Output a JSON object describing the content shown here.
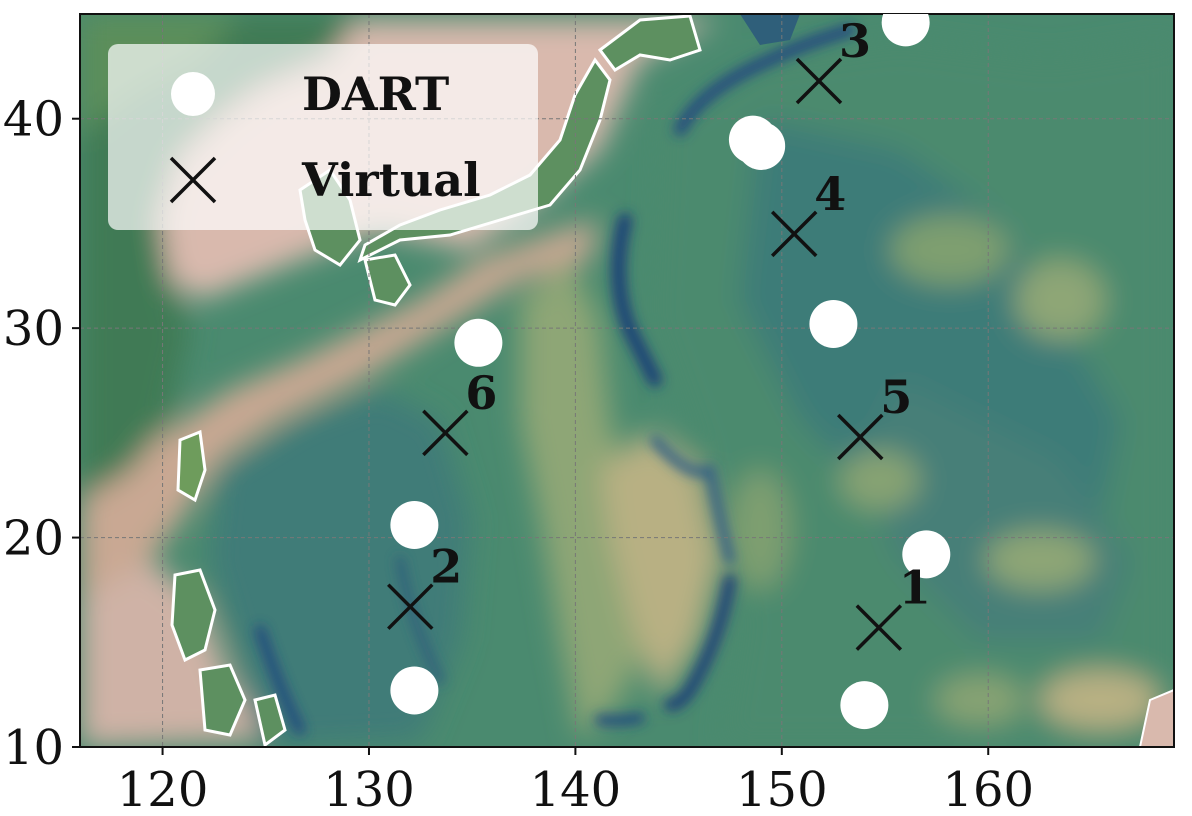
{
  "map": {
    "x_axis": {
      "range": [
        116,
        169
      ],
      "ticks": [
        120,
        130,
        140,
        150,
        160
      ],
      "tick_labels": [
        "120",
        "130",
        "140",
        "150",
        "160"
      ]
    },
    "y_axis": {
      "range": [
        10,
        45
      ],
      "ticks": [
        10,
        20,
        30,
        40
      ],
      "tick_labels": [
        "10",
        "20",
        "30",
        "40"
      ]
    },
    "grid": true,
    "basemap": "bathymetry and topography shaded relief",
    "colors": {
      "deep_ocean": "#2f5f7a",
      "ocean": "#4a8a6f",
      "shelf": "#c8b48f",
      "coast": "#d8b8b0",
      "land": "#3f7a55",
      "marker_dart": "#ffffff",
      "marker_virtual": "#111111"
    }
  },
  "legend": {
    "placement": "top-left",
    "items": [
      {
        "label": "DART",
        "marker": "white-circle"
      },
      {
        "label": "Virtual",
        "marker": "black-x"
      }
    ]
  },
  "dart_stations": [
    {
      "lon": 156.0,
      "lat": 44.6
    },
    {
      "lon": 148.6,
      "lat": 39.0
    },
    {
      "lon": 149.0,
      "lat": 38.7
    },
    {
      "lon": 152.5,
      "lat": 30.2
    },
    {
      "lon": 135.3,
      "lat": 29.3
    },
    {
      "lon": 132.2,
      "lat": 20.6
    },
    {
      "lon": 157.0,
      "lat": 19.2
    },
    {
      "lon": 132.2,
      "lat": 12.7
    },
    {
      "lon": 154.0,
      "lat": 12.0
    }
  ],
  "virtual_stations": [
    {
      "id": "1",
      "lon": 154.7,
      "lat": 15.7
    },
    {
      "id": "2",
      "lon": 132.0,
      "lat": 16.7
    },
    {
      "id": "3",
      "lon": 151.8,
      "lat": 41.8
    },
    {
      "id": "4",
      "lon": 150.6,
      "lat": 34.5
    },
    {
      "id": "5",
      "lon": 153.8,
      "lat": 24.8
    },
    {
      "id": "6",
      "lon": 133.7,
      "lat": 25.0
    }
  ]
}
